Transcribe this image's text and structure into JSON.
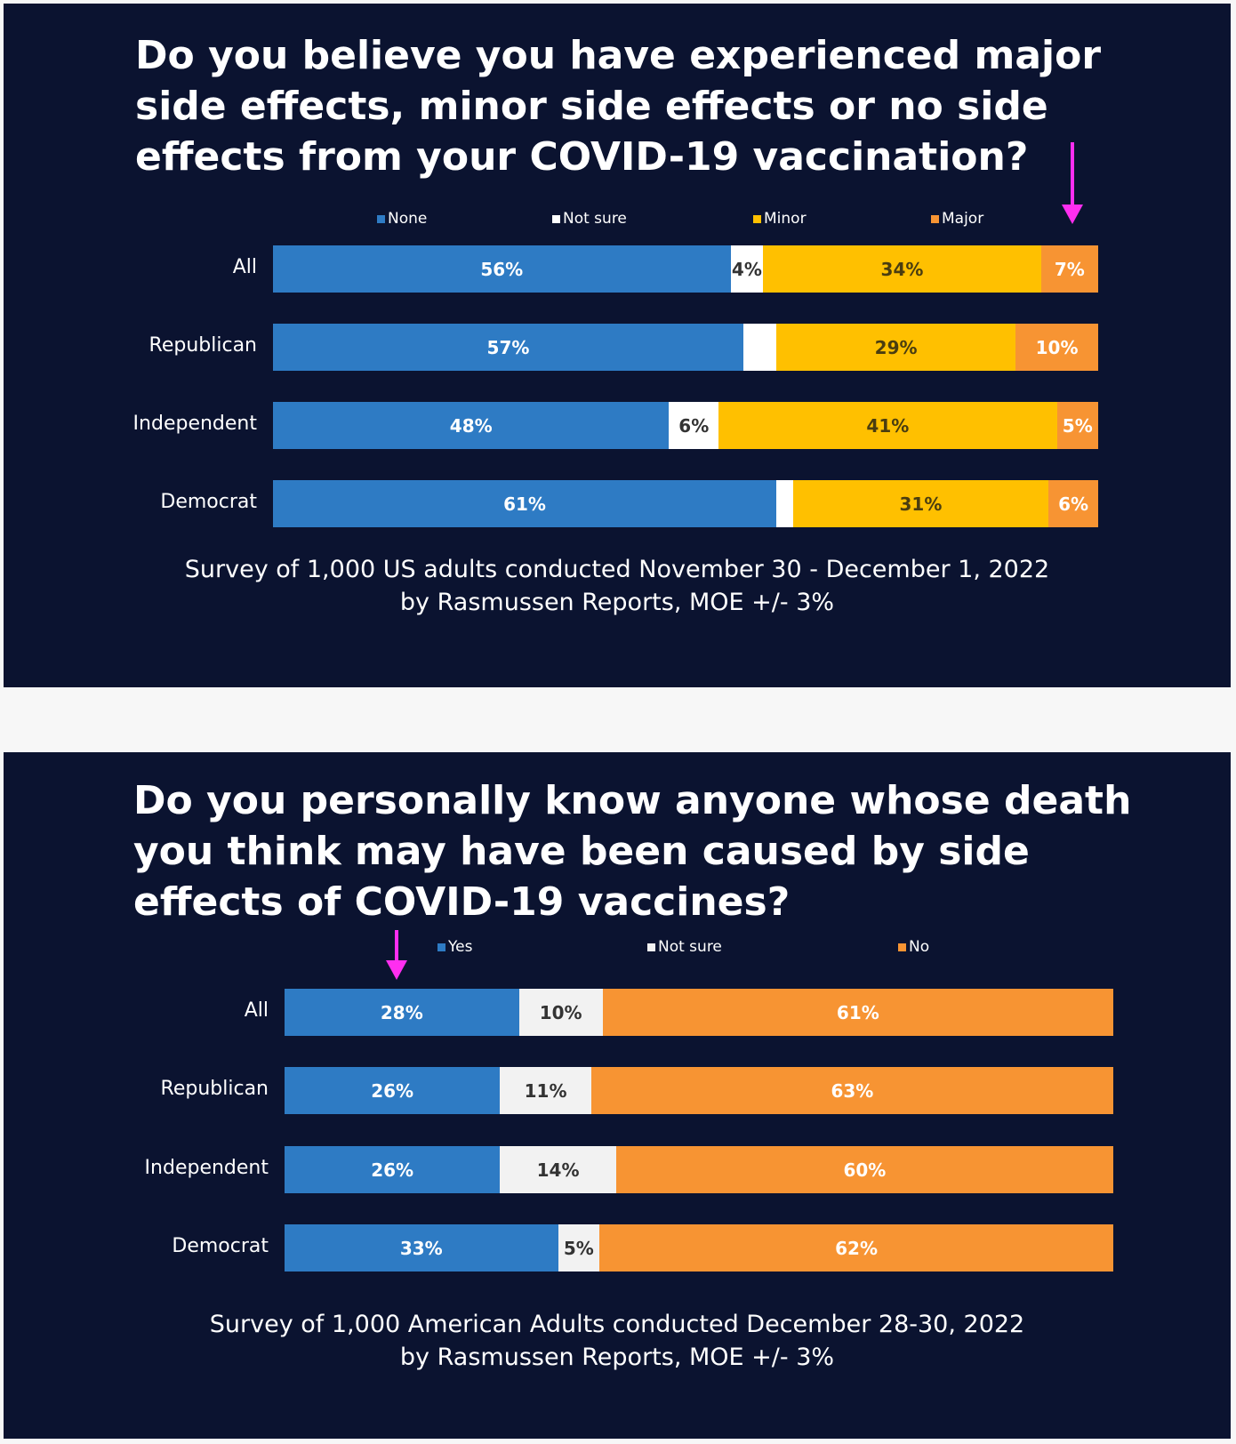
{
  "colors": {
    "blue": "#2e7bc4",
    "white": "#ffffff",
    "notsure2": "#f2f2f2",
    "yellow": "#ffc000",
    "orange": "#f79433",
    "background": "#0b1330"
  },
  "chart_data": [
    {
      "type": "bar",
      "stacked": true,
      "orientation": "horizontal",
      "title": "Do you believe you have experienced major side effects, minor side effects or no side effects from your COVID-19 vaccination?",
      "categories": [
        "All",
        "Republican",
        "Independent",
        "Democrat"
      ],
      "series": [
        {
          "name": "None",
          "color": "#2e7bc4",
          "text": "#ffffff",
          "values": [
            56,
            57,
            48,
            61
          ],
          "labels": [
            "56%",
            "57%",
            "48%",
            "61%"
          ]
        },
        {
          "name": "Not sure",
          "color": "#ffffff",
          "text": "#333333",
          "values": [
            4,
            4,
            6,
            2
          ],
          "labels": [
            "4%",
            "",
            "6%",
            ""
          ]
        },
        {
          "name": "Minor",
          "color": "#ffc000",
          "text": "#4a3d10",
          "values": [
            34,
            29,
            41,
            31
          ],
          "labels": [
            "34%",
            "29%",
            "41%",
            "31%"
          ]
        },
        {
          "name": "Major",
          "color": "#f79433",
          "text": "#ffffff",
          "values": [
            7,
            10,
            5,
            6
          ],
          "labels": [
            "7%",
            "10%",
            "5%",
            "6%"
          ]
        }
      ],
      "legend": "top",
      "footnote": [
        "Survey of 1,000 US adults conducted November 30 - December 1, 2022",
        "by Rasmussen Reports, MOE +/- 3%"
      ]
    },
    {
      "type": "bar",
      "stacked": true,
      "orientation": "horizontal",
      "title": "Do you personally know anyone whose death you think may have been caused by side effects of COVID-19 vaccines?",
      "categories": [
        "All",
        "Republican",
        "Independent",
        "Democrat"
      ],
      "series": [
        {
          "name": "Yes",
          "color": "#2e7bc4",
          "text": "#ffffff",
          "values": [
            28,
            26,
            26,
            33
          ],
          "labels": [
            "28%",
            "26%",
            "26%",
            "33%"
          ]
        },
        {
          "name": "Not sure",
          "color": "#f2f2f2",
          "text": "#333333",
          "values": [
            10,
            11,
            14,
            5
          ],
          "labels": [
            "10%",
            "11%",
            "14%",
            "5%"
          ]
        },
        {
          "name": "No",
          "color": "#f79433",
          "text": "#ffffff",
          "values": [
            61,
            63,
            60,
            62
          ],
          "labels": [
            "61%",
            "63%",
            "60%",
            "62%"
          ]
        }
      ],
      "legend": "top",
      "footnote": [
        "Survey of 1,000 American Adults conducted December 28-30, 2022",
        "by Rasmussen Reports, MOE +/- 3%"
      ]
    }
  ]
}
